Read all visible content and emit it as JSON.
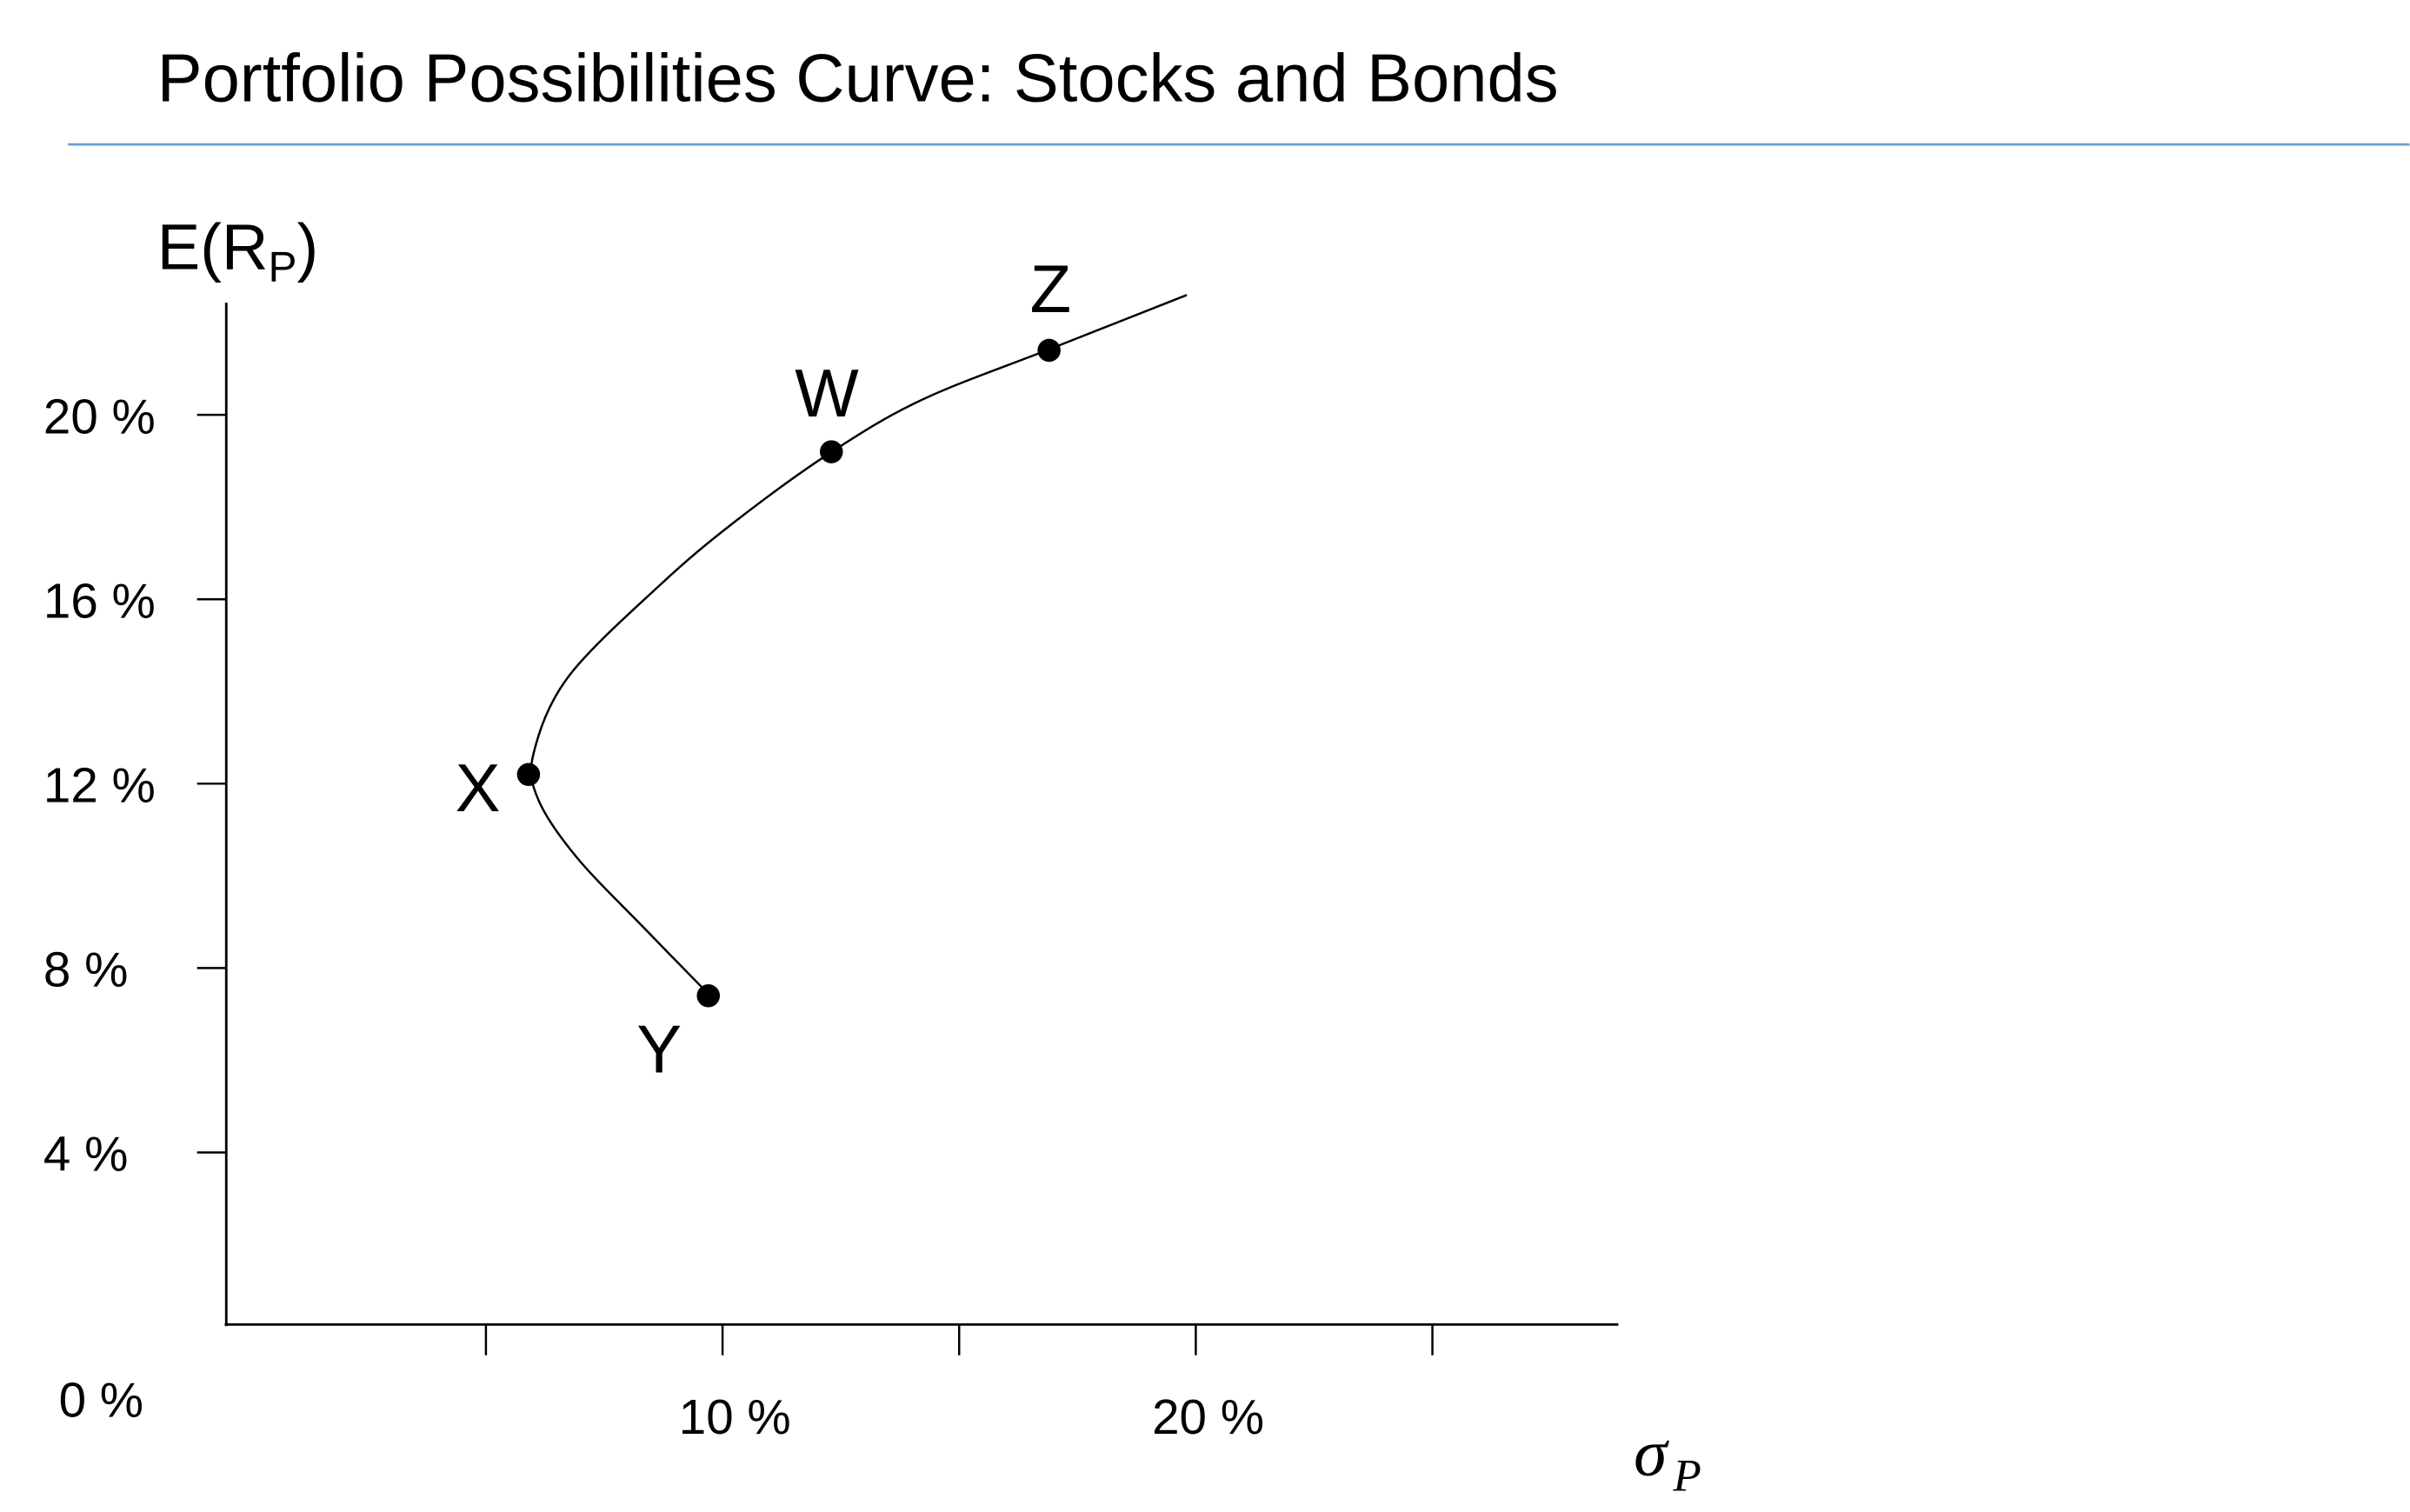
{
  "chart_data": {
    "type": "line",
    "title": "Portfolio Possibilities Curve: Stocks and Bonds",
    "ylabel": {
      "main": "E(R",
      "sub": "P",
      "close": ")"
    },
    "xlabel": {
      "main": "σ",
      "sub": "P"
    },
    "x_origin_label": "0 %",
    "x_ticks": [
      5,
      10,
      15,
      20,
      25
    ],
    "x_tick_labels": [
      {
        "value": 10,
        "label": "10 %"
      },
      {
        "value": 20,
        "label": "20 %"
      }
    ],
    "y_ticks": [
      {
        "value": 20,
        "label": "20 %"
      },
      {
        "value": 16,
        "label": "16 %"
      },
      {
        "value": 12,
        "label": "12 %"
      },
      {
        "value": 8,
        "label": "8 %"
      },
      {
        "value": 4,
        "label": "4 %"
      }
    ],
    "xlim": [
      0,
      29
    ],
    "ylim": [
      0,
      22.4
    ],
    "grid": false,
    "curve": {
      "x": [
        9.71,
        8.38,
        6.92,
        6.1,
        6.01,
        6.75,
        8.7,
        10.32,
        12.31,
        14.22,
        16.92,
        19.81
      ],
      "y": [
        7.43,
        8.83,
        10.4,
        11.67,
        12.67,
        14.33,
        16.33,
        17.73,
        19.2,
        20.33,
        21.43,
        22.6
      ]
    },
    "points": [
      {
        "label": "Z",
        "x": 16.9,
        "y": 21.4
      },
      {
        "label": "W",
        "x": 12.3,
        "y": 19.2
      },
      {
        "label": "X",
        "x": 5.9,
        "y": 12.2
      },
      {
        "label": "Y",
        "x": 9.7,
        "y": 7.4
      }
    ],
    "colors": {
      "rule": "#6a9fcd",
      "ink": "#000000"
    }
  }
}
